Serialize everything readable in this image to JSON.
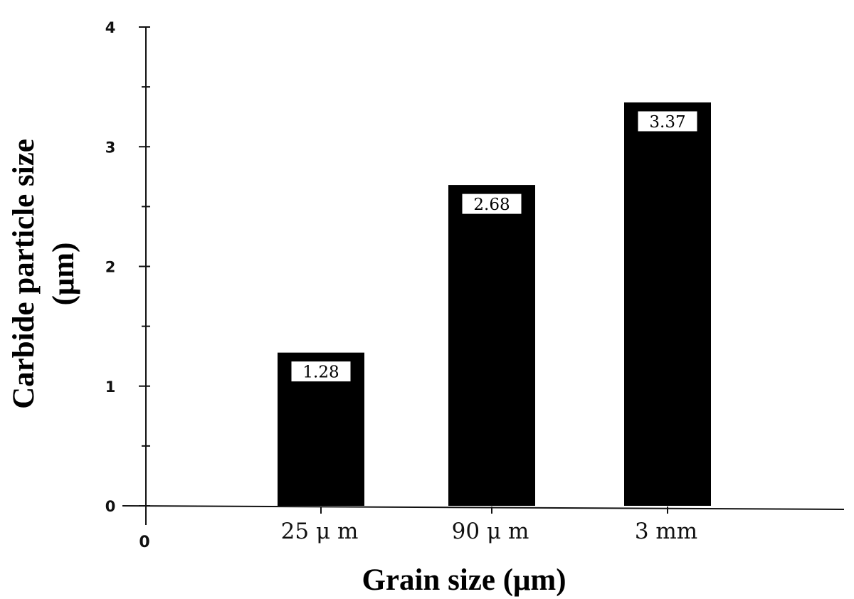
{
  "chart_data": {
    "type": "bar",
    "categories": [
      "25 μ m",
      "90 μ m",
      "3 mm"
    ],
    "values": [
      1.28,
      2.68,
      3.37
    ],
    "data_labels": [
      "1.28",
      "2.68",
      "3.37"
    ],
    "xlabel": "Grain size (μm)",
    "ylabel_lines": [
      "Carbide particle size",
      "(μm)"
    ],
    "ylim": [
      0,
      4
    ],
    "y_ticks": [
      "0",
      "1",
      "2",
      "3",
      "4"
    ],
    "origin_label": "0",
    "grid": false,
    "legend": "none",
    "bar_color": "#000000",
    "label_box_color": "#ffffff"
  }
}
